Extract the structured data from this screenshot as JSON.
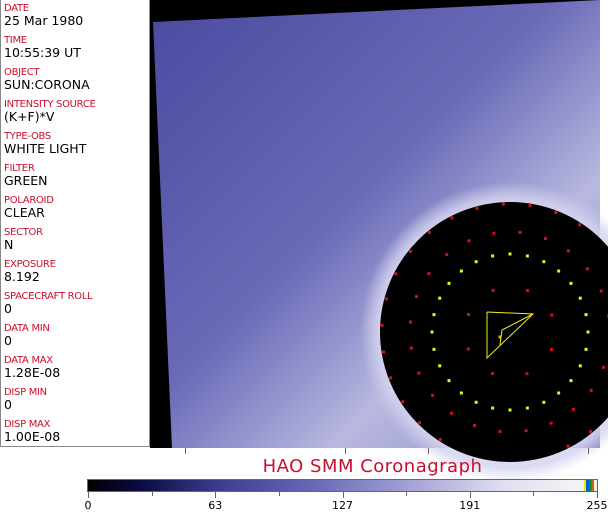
{
  "header_fields": [
    {
      "label": "DATE",
      "value": "25 Mar 1980"
    },
    {
      "label": "TIME",
      "value": "10:55:39 UT"
    },
    {
      "label": "OBJECT",
      "value": "SUN:CORONA"
    },
    {
      "label": "INTENSITY SOURCE",
      "value": "(K+F)*V"
    },
    {
      "label": "TYPE-OBS",
      "value": "WHITE LIGHT"
    },
    {
      "label": "FILTER",
      "value": "GREEN"
    },
    {
      "label": "POLAROID",
      "value": "CLEAR"
    },
    {
      "label": "SECTOR",
      "value": "N"
    },
    {
      "label": "EXPOSURE",
      "value": "8.192"
    },
    {
      "label": "SPACECRAFT ROLL",
      "value": "0"
    },
    {
      "label": "DATA MIN",
      "value": "0"
    },
    {
      "label": "DATA MAX",
      "value": "1.28E-08"
    },
    {
      "label": "DISP MIN",
      "value": "0"
    },
    {
      "label": "DISP MAX",
      "value": "1.00E-08"
    }
  ],
  "title": "HAO   SMM  Coronagraph",
  "colorbar": {
    "ticks": [
      "0",
      "63",
      "127",
      "191",
      "255"
    ]
  },
  "colors": {
    "label": "#c8102e",
    "marker_red": "#d01020",
    "marker_yellow": "#f0f020",
    "background": "#000000"
  }
}
